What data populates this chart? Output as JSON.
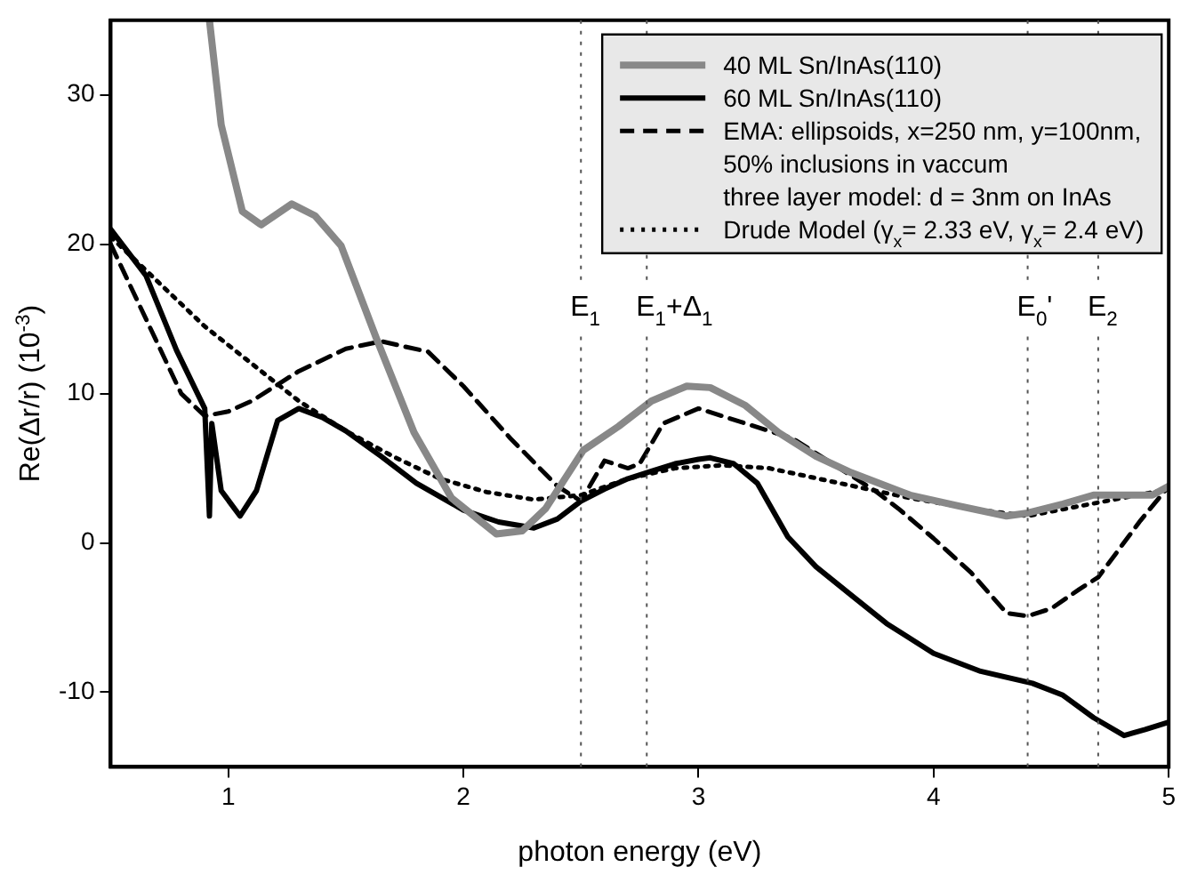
{
  "chart_data": {
    "type": "line",
    "xlabel": "photon energy (eV)",
    "ylabel": "Re(Δr/r) (10$^{-3}$)",
    "xlim": [
      0.5,
      5
    ],
    "ylim": [
      -15,
      35
    ],
    "xticks": [
      1,
      2,
      3,
      4,
      5
    ],
    "yticks": [
      -10,
      0,
      10,
      20,
      30
    ],
    "legend": "top right",
    "grid": false,
    "marker": "none",
    "series": [
      {
        "name": "40 ML Sn/InAs(110)",
        "color": "#888888",
        "line_style": "solid",
        "x": [
          0.92,
          0.97,
          1.06,
          1.14,
          1.27,
          1.37,
          1.48,
          1.63,
          1.79,
          1.95,
          2.14,
          2.25,
          2.35,
          2.51,
          2.66,
          2.8,
          2.95,
          3.05,
          3.2,
          3.34,
          3.5,
          3.65,
          3.9,
          4.1,
          4.31,
          4.4,
          4.55,
          4.68,
          4.8,
          4.93,
          5.0
        ],
        "values": [
          35,
          28,
          22.2,
          21.3,
          22.7,
          21.9,
          19.9,
          13.7,
          7.4,
          3,
          0.6,
          0.8,
          2.3,
          6.2,
          7.8,
          9.5,
          10.5,
          10.4,
          9.2,
          7.4,
          5.8,
          4.7,
          3.2,
          2.5,
          1.8,
          2.0,
          2.6,
          3.2,
          3.2,
          3.2,
          3.8
        ]
      },
      {
        "name": "60 ML Sn/InAs(110)",
        "color": "#000000",
        "line_style": "solid",
        "x": [
          0.5,
          0.65,
          0.78,
          0.9,
          0.92,
          0.93,
          0.97,
          1.05,
          1.12,
          1.21,
          1.3,
          1.4,
          1.5,
          1.65,
          1.8,
          2.0,
          2.15,
          2.3,
          2.4,
          2.5,
          2.6,
          2.7,
          2.8,
          2.9,
          3.0,
          3.05,
          3.15,
          3.25,
          3.38,
          3.5,
          3.65,
          3.8,
          4.0,
          4.2,
          4.42,
          4.55,
          4.68,
          4.81,
          4.9,
          5.0
        ],
        "values": [
          21,
          17.9,
          12.9,
          9,
          1.8,
          8,
          3.5,
          1.8,
          3.5,
          8.2,
          9,
          8.4,
          7.5,
          5.8,
          4,
          2.2,
          1.4,
          1,
          1.6,
          2.8,
          3.6,
          4.3,
          4.8,
          5.3,
          5.6,
          5.7,
          5.3,
          4,
          0.4,
          -1.6,
          -3.5,
          -5.4,
          -7.4,
          -8.6,
          -9.4,
          -10.2,
          -11.7,
          -12.9,
          -12.5,
          -12
        ]
      },
      {
        "name": "EMA: ellipsoids, x=250 nm, y=100nm,\n50% inclusions in vaccum\nthree layer model: d = 3nm on InAs",
        "color": "#000000",
        "line_style": "dashed",
        "x": [
          0.5,
          0.65,
          0.8,
          0.9,
          1.0,
          1.1,
          1.3,
          1.5,
          1.65,
          1.85,
          2.0,
          2.2,
          2.4,
          2.5,
          2.6,
          2.7,
          2.75,
          2.85,
          3.0,
          3.2,
          3.4,
          3.6,
          3.75,
          3.85,
          4.0,
          4.16,
          4.31,
          4.4,
          4.5,
          4.62,
          4.7,
          4.88,
          5.0
        ],
        "values": [
          20,
          15,
          10,
          8.5,
          8.8,
          9.5,
          11.5,
          13,
          13.5,
          12.8,
          10.5,
          7,
          3.8,
          2.8,
          5.5,
          5,
          5.3,
          8,
          9,
          8,
          7,
          5,
          3.5,
          2.3,
          0.3,
          -2,
          -4.7,
          -4.9,
          -4.4,
          -3.1,
          -2.3,
          1.5,
          3.8
        ]
      },
      {
        "name": "Drude Model (γ$_{x}$= 2.33 eV, γ$_{x}$= 2.4 eV)",
        "color": "#000000",
        "line_style": "dotted",
        "x": [
          0.5,
          0.7,
          0.9,
          1.1,
          1.3,
          1.5,
          1.7,
          1.9,
          2.1,
          2.3,
          2.5,
          2.7,
          2.9,
          3.1,
          3.3,
          3.6,
          3.9,
          4.2,
          4.4,
          4.6,
          4.8,
          5.0
        ],
        "values": [
          20.5,
          17.5,
          14.5,
          12,
          9.5,
          7.5,
          5.8,
          4.3,
          3.4,
          2.9,
          3.2,
          4.3,
          5,
          5.2,
          5,
          4,
          3,
          2.2,
          1.8,
          2.4,
          3,
          3.6
        ]
      }
    ],
    "ref_lines": [
      {
        "axis": "x",
        "value": 2.5,
        "label": "E$_{1}$",
        "line_style": "dotted",
        "color": "#555555"
      },
      {
        "axis": "x",
        "value": 2.78,
        "label": "E$_{1}$+Δ$_{1}$",
        "line_style": "dotted",
        "color": "#555555"
      },
      {
        "axis": "x",
        "value": 4.4,
        "label": "E$_{0}$'",
        "line_style": "dotted",
        "color": "#555555"
      },
      {
        "axis": "x",
        "value": 4.7,
        "label": "E$_{2}$",
        "line_style": "dotted",
        "color": "#555555"
      }
    ]
  }
}
